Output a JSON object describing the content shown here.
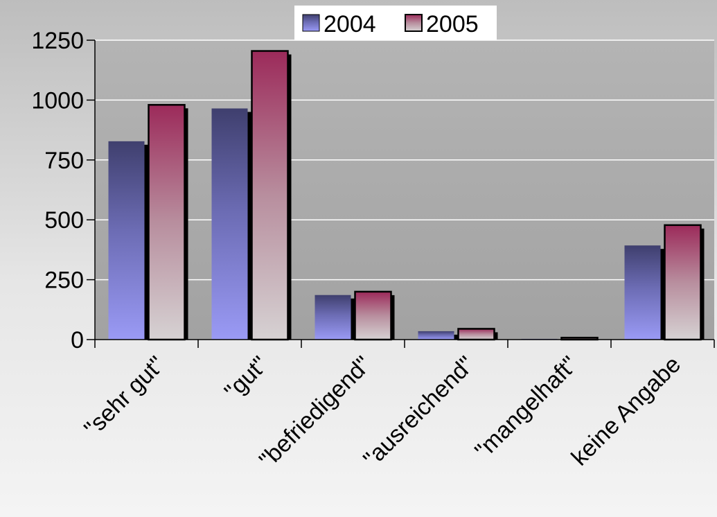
{
  "chart_data": {
    "type": "bar",
    "title": "",
    "xlabel": "",
    "ylabel": "",
    "categories": [
      "\"sehr gut\"",
      "\"gut\"",
      "\"befriedigend\"",
      "\"ausreichend\"",
      "\"mangelhaft\"",
      "keine Angabe"
    ],
    "series": [
      {
        "name": "2004",
        "values": [
          828,
          965,
          186,
          35,
          3,
          393
        ],
        "color": "#5a5a9e"
      },
      {
        "name": "2005",
        "values": [
          980,
          1205,
          200,
          45,
          8,
          478
        ],
        "color": "#a0305e"
      }
    ],
    "ylim": [
      0,
      1250
    ],
    "yticks": [
      "0",
      "250",
      "500",
      "750",
      "1000",
      "1250"
    ],
    "grid": true,
    "legend_position": "top-center"
  }
}
